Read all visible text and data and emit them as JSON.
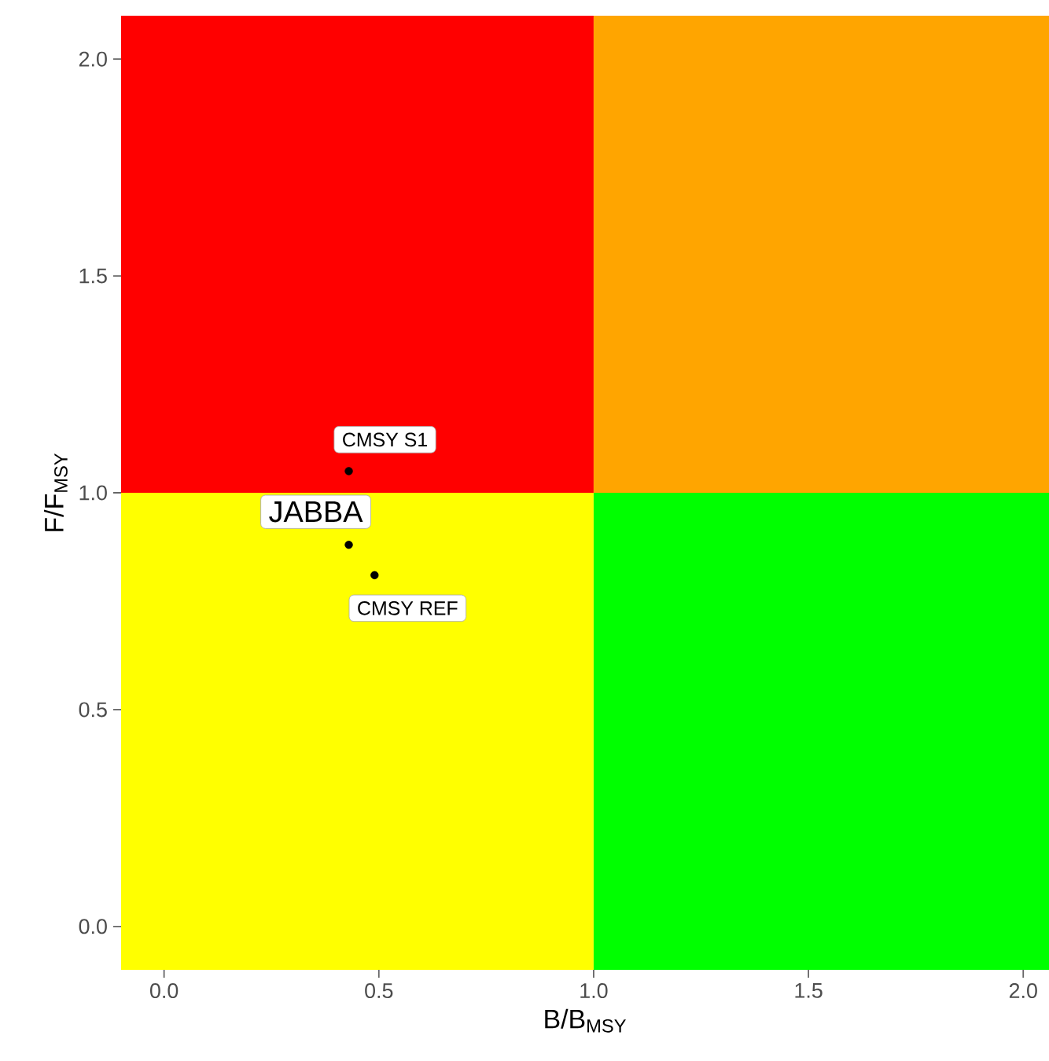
{
  "chart_data": {
    "type": "scatter",
    "xlabel": "B/B$_{MSY}$",
    "ylabel": "F/F$_{MSY}$",
    "xlim": [
      -0.1,
      2.06
    ],
    "ylim": [
      -0.1,
      2.1
    ],
    "xticks": [
      {
        "value": 0,
        "label": "0.0"
      },
      {
        "value": 0.5,
        "label": "0.5"
      },
      {
        "value": 1,
        "label": "1.0"
      },
      {
        "value": 1.5,
        "label": "1.5"
      },
      {
        "value": 2,
        "label": "2.0"
      }
    ],
    "yticks": [
      {
        "value": 0,
        "label": "0.0"
      },
      {
        "value": 0.5,
        "label": "0.5"
      },
      {
        "value": 1,
        "label": "1.0"
      },
      {
        "value": 1.5,
        "label": "1.5"
      },
      {
        "value": 2,
        "label": "2.0"
      }
    ],
    "marker": "circle",
    "series": [
      {
        "type": "bar",
        "x": [
          0.45,
          1.53
        ],
        "base": [
          -0.1,
          -0.1
        ],
        "values": [
          1.1,
          1.1
        ],
        "colors": [
          "#ffff00",
          "#00ff00"
        ]
      },
      {
        "type": "bar",
        "x": [
          0.45,
          1.53
        ],
        "base": [
          1,
          1
        ],
        "values": [
          1.1,
          1.1
        ],
        "colors": [
          "#ff0000",
          "#ffa500"
        ]
      },
      {
        "name": "CMSY S1",
        "color": "#000000",
        "x": [
          0.43
        ],
        "values": [
          1.05
        ]
      },
      {
        "name": "JABBA",
        "color": "#000000",
        "x": [
          0.43
        ],
        "values": [
          0.88
        ]
      },
      {
        "name": "CMSY REF",
        "color": "#000000",
        "x": [
          0.49
        ],
        "values": [
          0.81
        ]
      }
    ]
  }
}
